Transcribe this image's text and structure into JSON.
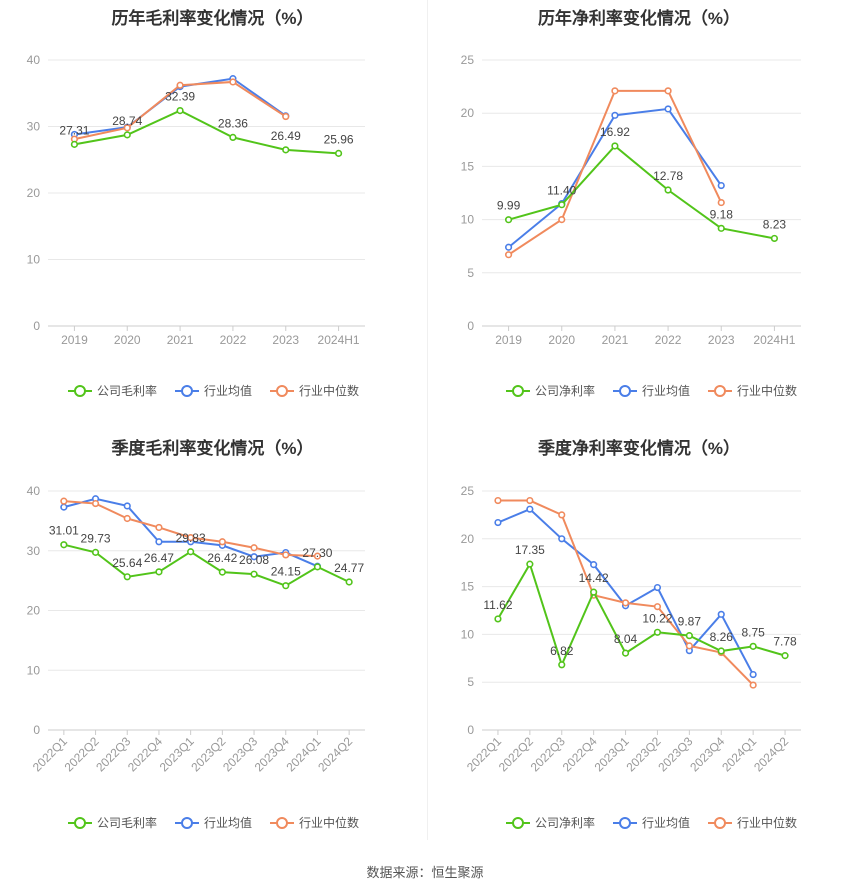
{
  "footer": {
    "source": "数据来源：恒生聚源"
  },
  "colors": {
    "company": "#52c41a",
    "avg": "#4a7ee8",
    "median": "#f08a5d",
    "grid": "#e8e8e8",
    "axis": "#999999"
  },
  "chart_data": [
    {
      "type": "line",
      "title": "历年毛利率变化情况（%）",
      "categories": [
        "2019",
        "2020",
        "2021",
        "2022",
        "2023",
        "2024H1"
      ],
      "ylim": [
        0,
        40
      ],
      "yticks": [
        "0",
        "10",
        "20",
        "30",
        "40"
      ],
      "grid": true,
      "legend_position": "bottom",
      "series": [
        {
          "name": "公司毛利率",
          "values": [
            27.31,
            28.74,
            32.39,
            28.36,
            26.49,
            25.96
          ],
          "labels": [
            "27.31",
            "28.74",
            "32.39",
            "28.36",
            "26.49",
            "25.96"
          ]
        },
        {
          "name": "行业均值",
          "values": [
            28.8,
            29.9,
            36.0,
            37.2,
            31.6,
            null
          ]
        },
        {
          "name": "行业中位数",
          "values": [
            28.1,
            29.8,
            36.2,
            36.7,
            31.5,
            null
          ]
        }
      ]
    },
    {
      "type": "line",
      "title": "历年净利率变化情况（%）",
      "categories": [
        "2019",
        "2020",
        "2021",
        "2022",
        "2023",
        "2024H1"
      ],
      "ylim": [
        0,
        25
      ],
      "yticks": [
        "0",
        "5",
        "10",
        "15",
        "20",
        "25"
      ],
      "grid": true,
      "legend_position": "bottom",
      "series": [
        {
          "name": "公司净利率",
          "values": [
            9.99,
            11.4,
            16.92,
            12.78,
            9.18,
            8.23
          ],
          "labels": [
            "9.99",
            "11.40",
            "16.92",
            "12.78",
            "9.18",
            "8.23"
          ]
        },
        {
          "name": "行业均值",
          "values": [
            7.4,
            11.5,
            19.8,
            20.4,
            13.2,
            null
          ]
        },
        {
          "name": "行业中位数",
          "values": [
            6.7,
            10.0,
            22.1,
            22.1,
            11.6,
            null
          ]
        }
      ]
    },
    {
      "type": "line",
      "title": "季度毛利率变化情况（%）",
      "categories": [
        "2022Q1",
        "2022Q2",
        "2022Q3",
        "2022Q4",
        "2023Q1",
        "2023Q2",
        "2023Q3",
        "2023Q4",
        "2024Q1",
        "2024Q2"
      ],
      "ylim": [
        0,
        40
      ],
      "yticks": [
        "0",
        "10",
        "20",
        "30",
        "40"
      ],
      "grid": true,
      "legend_position": "bottom",
      "series": [
        {
          "name": "公司毛利率",
          "values": [
            31.01,
            29.73,
            25.64,
            26.47,
            29.83,
            26.42,
            26.08,
            24.15,
            27.3,
            24.77
          ],
          "labels": [
            "31.01",
            "29.73",
            "25.64",
            "26.47",
            "29.83",
            "26.42",
            "26.08",
            "24.15",
            "27.30",
            "24.77"
          ]
        },
        {
          "name": "行业均值",
          "values": [
            37.3,
            38.7,
            37.5,
            31.5,
            31.5,
            30.9,
            29.0,
            29.7,
            27.4,
            null
          ]
        },
        {
          "name": "行业中位数",
          "values": [
            38.3,
            37.9,
            35.4,
            33.9,
            32.2,
            31.5,
            30.5,
            29.3,
            29.1,
            null
          ]
        }
      ]
    },
    {
      "type": "line",
      "title": "季度净利率变化情况（%）",
      "categories": [
        "2022Q1",
        "2022Q2",
        "2022Q3",
        "2022Q4",
        "2023Q1",
        "2023Q2",
        "2023Q3",
        "2023Q4",
        "2024Q1",
        "2024Q2"
      ],
      "ylim": [
        0,
        25
      ],
      "yticks": [
        "0",
        "5",
        "10",
        "15",
        "20",
        "25"
      ],
      "grid": true,
      "legend_position": "bottom",
      "series": [
        {
          "name": "公司净利率",
          "values": [
            11.62,
            17.35,
            6.82,
            14.42,
            8.04,
            10.22,
            9.87,
            8.26,
            8.75,
            7.78
          ],
          "labels": [
            "11.62",
            "17.35",
            "6.82",
            "14.42",
            "8.04",
            "10.22",
            "9.87",
            "8.26",
            "8.75",
            "7.78"
          ]
        },
        {
          "name": "行业均值",
          "values": [
            21.7,
            23.1,
            20.0,
            17.3,
            13.0,
            14.9,
            8.3,
            12.1,
            5.8,
            null
          ]
        },
        {
          "name": "行业中位数",
          "values": [
            24.0,
            24.0,
            22.5,
            14.1,
            13.3,
            12.9,
            8.8,
            8.1,
            4.7,
            null
          ]
        }
      ]
    }
  ]
}
